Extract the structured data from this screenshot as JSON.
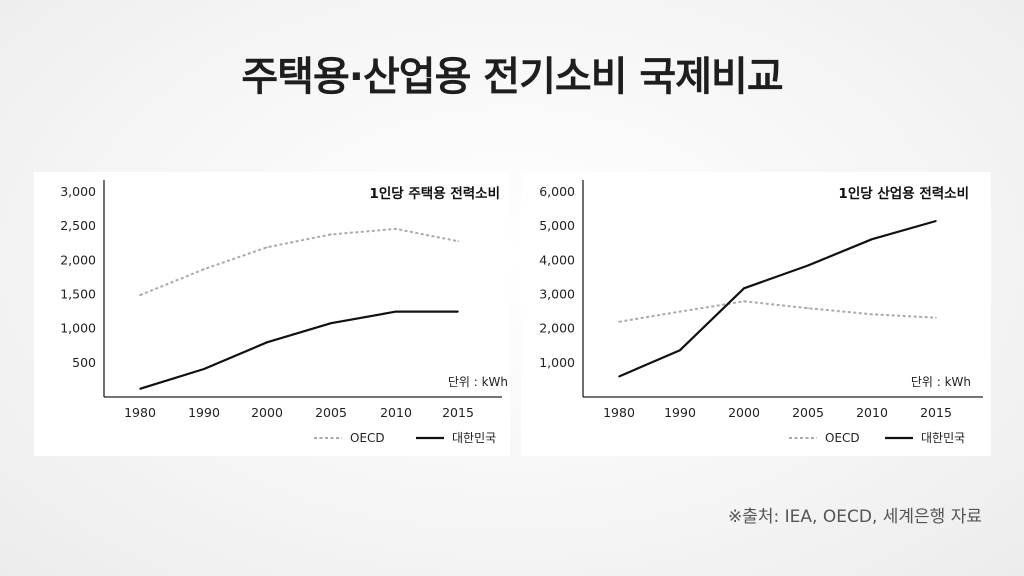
{
  "title": "주택용·산업용 전기소비 국제비교",
  "source": "※출처: IEA, OECD, 세계은행 자료",
  "legend": {
    "oecd": "OECD",
    "korea": "대한민국"
  },
  "chart_data": [
    {
      "type": "line",
      "title": "1인당 주택용 전력소비",
      "unit_note": "단위 : kWh",
      "x": [
        "1980",
        "1990",
        "2000",
        "2005",
        "2010",
        "2015"
      ],
      "ylim": [
        0,
        3000
      ],
      "yticks": [
        500,
        1000,
        1500,
        2000,
        2500,
        3000
      ],
      "ytick_labels": [
        "500",
        "1,000",
        "1,500",
        "2,000",
        "2,500",
        "3,000"
      ],
      "legend_position": "bottom-right",
      "series": [
        {
          "name": "OECD",
          "style": "dashed",
          "color": "#aaaaaa",
          "values": [
            1490,
            1870,
            2190,
            2380,
            2460,
            2280
          ]
        },
        {
          "name": "대한민국",
          "style": "solid",
          "color": "#111111",
          "values": [
            120,
            410,
            800,
            1080,
            1250,
            1250
          ]
        }
      ]
    },
    {
      "type": "line",
      "title": "1인당 산업용 전력소비",
      "unit_note": "단위 : kWh",
      "x": [
        "1980",
        "1990",
        "2000",
        "2005",
        "2010",
        "2015"
      ],
      "ylim": [
        0,
        6000
      ],
      "yticks": [
        1000,
        2000,
        3000,
        4000,
        5000,
        6000
      ],
      "ytick_labels": [
        "1,000",
        "2,000",
        "3,000",
        "4,000",
        "5,000",
        "6,000"
      ],
      "legend_position": "bottom-right",
      "series": [
        {
          "name": "OECD",
          "style": "dashed",
          "color": "#aaaaaa",
          "values": [
            2200,
            2500,
            2800,
            2600,
            2420,
            2320
          ]
        },
        {
          "name": "대한민국",
          "style": "solid",
          "color": "#111111",
          "values": [
            600,
            1370,
            3180,
            3850,
            4620,
            5150
          ]
        }
      ]
    }
  ]
}
